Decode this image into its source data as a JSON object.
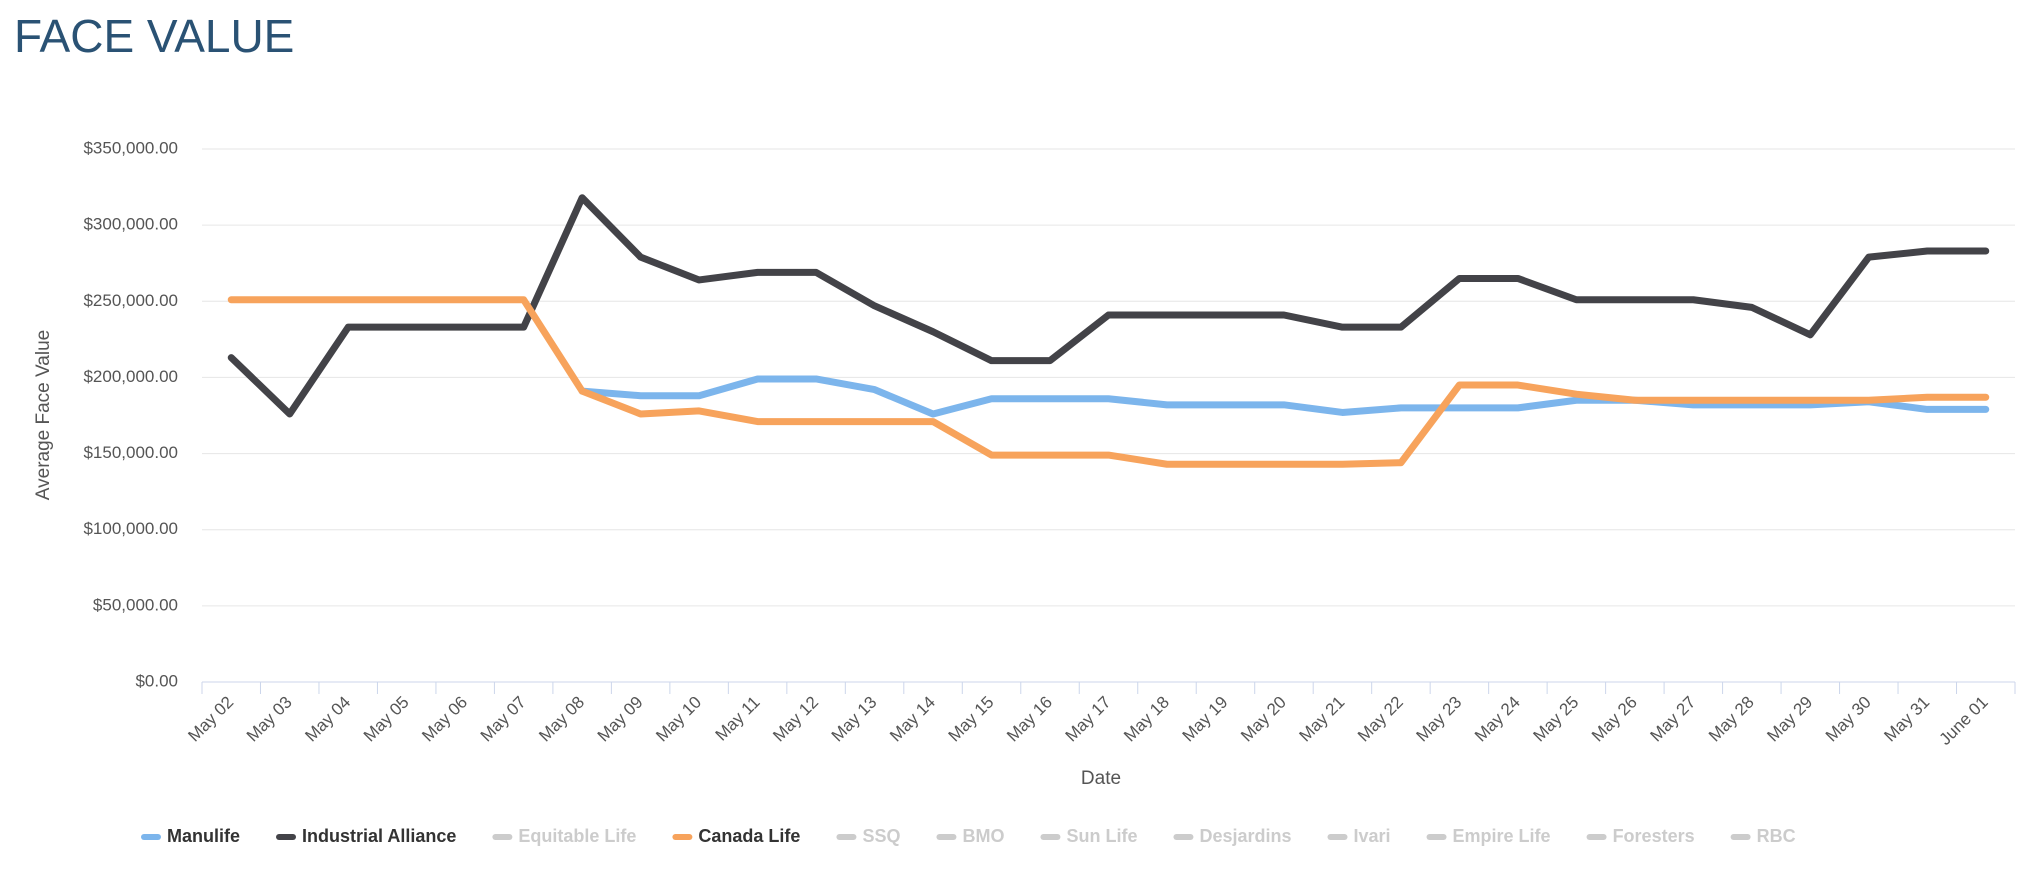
{
  "chart_data": {
    "type": "line",
    "title": "FACE VALUE",
    "x_label": "Date",
    "y_label": "Average Face Value",
    "categories": [
      "May 02",
      "May 03",
      "May 04",
      "May 05",
      "May 06",
      "May 07",
      "May 08",
      "May 09",
      "May 10",
      "May 11",
      "May 12",
      "May 13",
      "May 14",
      "May 15",
      "May 16",
      "May 17",
      "May 18",
      "May 19",
      "May 20",
      "May 21",
      "May 22",
      "May 23",
      "May 24",
      "May 25",
      "May 26",
      "May 27",
      "May 28",
      "May 29",
      "May 30",
      "May 31",
      "June 01"
    ],
    "ylim": [
      0,
      350000
    ],
    "yticks": [
      {
        "value": 0,
        "label": "$0.00"
      },
      {
        "value": 50000,
        "label": "$50,000.00"
      },
      {
        "value": 100000,
        "label": "$100,000.00"
      },
      {
        "value": 150000,
        "label": "$150,000.00"
      },
      {
        "value": 200000,
        "label": "$200,000.00"
      },
      {
        "value": 250000,
        "label": "$250,000.00"
      },
      {
        "value": 300000,
        "label": "$300,000.00"
      },
      {
        "value": 350000,
        "label": "$350,000.00"
      }
    ],
    "grid": true,
    "series": [
      {
        "name": "Manulife",
        "color": "#7cb5ec",
        "values": [
          null,
          null,
          null,
          null,
          null,
          null,
          191000,
          188000,
          188000,
          199000,
          199000,
          192000,
          176000,
          186000,
          186000,
          186000,
          182000,
          182000,
          182000,
          177000,
          180000,
          180000,
          180000,
          185000,
          185000,
          182000,
          182000,
          182000,
          184000,
          179000,
          179000
        ]
      },
      {
        "name": "Industrial Alliance",
        "color": "#434348",
        "values": [
          213000,
          176000,
          233000,
          233000,
          233000,
          233000,
          318000,
          279000,
          264000,
          269000,
          269000,
          247000,
          230000,
          211000,
          211000,
          241000,
          241000,
          241000,
          241000,
          233000,
          233000,
          265000,
          265000,
          251000,
          251000,
          251000,
          246000,
          228000,
          279000,
          283000,
          283000
        ]
      },
      {
        "name": "Equitable Life",
        "color": "#cccccc",
        "visible": false
      },
      {
        "name": "Canada Life",
        "color": "#f7a35c",
        "values": [
          251000,
          251000,
          251000,
          251000,
          251000,
          251000,
          191000,
          176000,
          178000,
          171000,
          171000,
          171000,
          171000,
          149000,
          149000,
          149000,
          143000,
          143000,
          143000,
          143000,
          144000,
          195000,
          195000,
          189000,
          185000,
          185000,
          185000,
          185000,
          185000,
          187000,
          187000
        ]
      },
      {
        "name": "SSQ",
        "color": "#cccccc",
        "visible": false
      },
      {
        "name": "BMO",
        "color": "#cccccc",
        "visible": false
      },
      {
        "name": "Sun Life",
        "color": "#cccccc",
        "visible": false
      },
      {
        "name": "Desjardins",
        "color": "#cccccc",
        "visible": false
      },
      {
        "name": "Ivari",
        "color": "#cccccc",
        "visible": false
      },
      {
        "name": "Empire Life",
        "color": "#cccccc",
        "visible": false
      },
      {
        "name": "Foresters",
        "color": "#cccccc",
        "visible": false
      },
      {
        "name": "RBC",
        "color": "#cccccc",
        "visible": false
      }
    ]
  }
}
